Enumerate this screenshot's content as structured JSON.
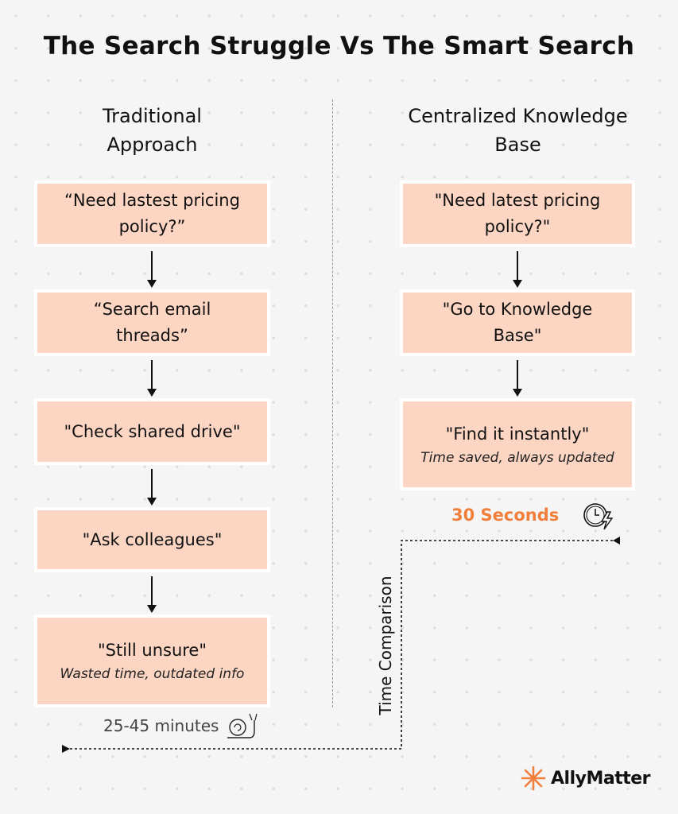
{
  "title": "The Search Struggle Vs The Smart Search",
  "left": {
    "heading_line1": "Traditional",
    "heading_line2": "Approach",
    "steps": [
      {
        "text": "“Need lastest pricing policy?”"
      },
      {
        "text": "“Search email threads”"
      },
      {
        "text": "\"Check shared drive\""
      },
      {
        "text": "\"Ask colleagues\""
      },
      {
        "text": "\"Still unsure\"",
        "note": "Wasted time, outdated info"
      }
    ],
    "time": "25-45  minutes",
    "time_icon": "snail-icon"
  },
  "right": {
    "heading_line1": "Centralized Knowledge",
    "heading_line2": "Base",
    "steps": [
      {
        "text": "\"Need latest pricing policy?\""
      },
      {
        "text": "\"Go to Knowledge Base\""
      },
      {
        "text": "\"Find it instantly\"",
        "note": "Time saved, always updated"
      }
    ],
    "time": "30 Seconds",
    "time_icon": "fast-clock-icon"
  },
  "comparison_label": "Time Comparison",
  "brand": {
    "name": "AllyMatter",
    "logo_icon": "starburst-icon"
  },
  "colors": {
    "box": "#fcd6c3",
    "accent": "#f07f3c",
    "background": "#f5f5f5"
  }
}
